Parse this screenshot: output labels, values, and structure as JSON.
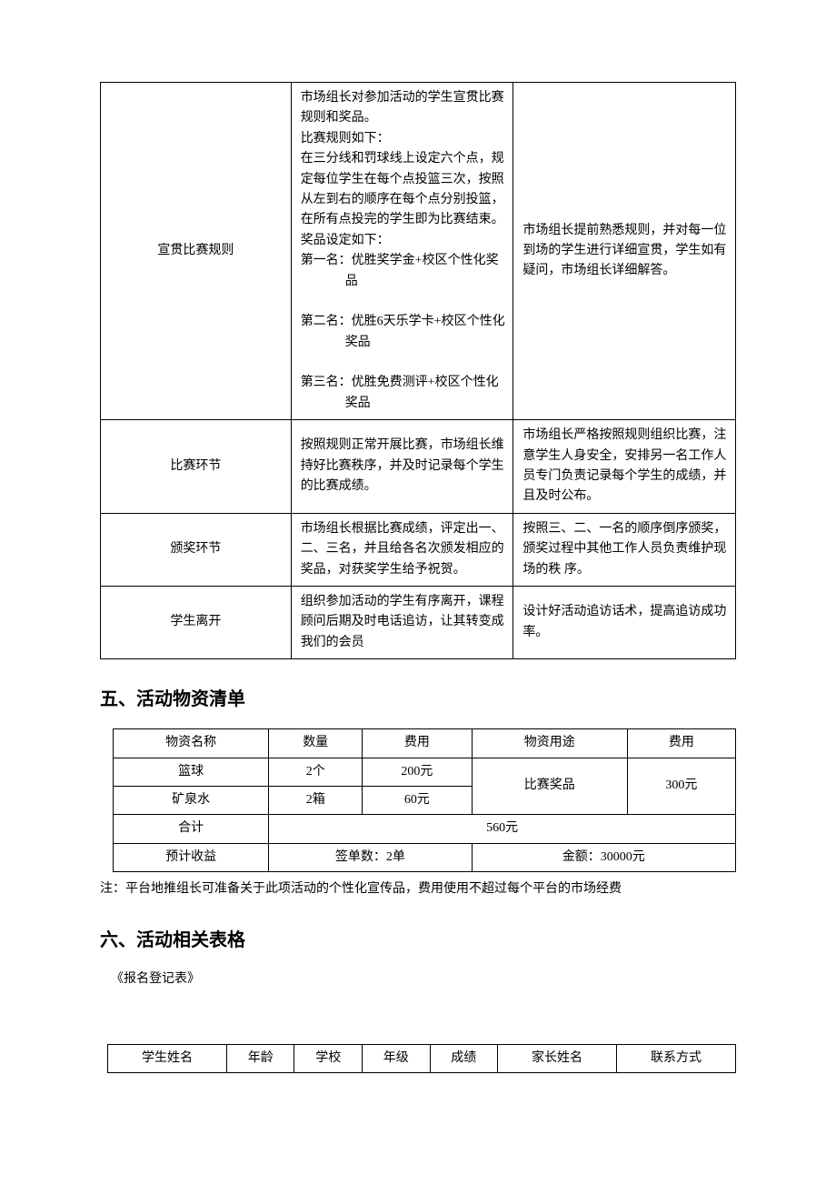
{
  "section4_rows": [
    {
      "name": "宣贯比赛规则",
      "mid": "市场组长对参加活动的学生宣贯比赛规则和奖品。\n比赛规则如下：\n在三分线和罚球线上设定六个点，规定每位学生在每个点投篮三次，按照从左到右的顺序在每个点分别投篮，在所有点投完的学生即为比赛结束。\n奖品设定如下：",
      "awards": [
        "第一名：优胜奖学金+校区个性化奖品",
        "第二名：优胜6天乐学卡+校区个性化奖品",
        "第三名：优胜免费测评+校区个性化奖品"
      ],
      "right": "市场组长提前熟悉规则，并对每一位到场的学生进行详细宣贯，学生如有疑问，市场组长详细解答。"
    },
    {
      "name": "比赛环节",
      "mid": "按照规则正常开展比赛，市场组长维持好比赛秩序，并及时记录每个学生的比赛成绩。",
      "right": "市场组长严格按照规则组织比赛，注意学生人身安全，安排另一名工作人员专门负责记录每个学生的成绩，并且及时公布。"
    },
    {
      "name": "颁奖环节",
      "mid": "市场组长根据比赛成绩，评定出一、二、三名，并且给各名次颁发相应的奖品，对获奖学生给予祝贺。",
      "right": "按照三、二、一名的顺序倒序颁奖，颁奖过程中其他工作人员负责维护现场的秩 序。"
    },
    {
      "name": "学生离开",
      "mid": "组织参加活动的学生有序离开，课程顾问后期及时电话追访，让其转变成我们的会员",
      "right": "设计好活动追访话术，提高追访成功率。"
    }
  ],
  "section5": {
    "title": "五、活动物资清单",
    "headers": {
      "c1": "物资名称",
      "c2": "数量",
      "c3": "费用",
      "c4": "物资用途",
      "c5": "费用"
    },
    "rows": [
      {
        "name": "篮球",
        "qty": "2个",
        "cost": "200元"
      },
      {
        "name": "矿泉水",
        "qty": "2箱",
        "cost": "60元"
      }
    ],
    "merged": {
      "use": "比赛奖品",
      "cost": "300元"
    },
    "total": {
      "label": "合计",
      "value": "560元"
    },
    "revenue": {
      "label": "预计收益",
      "orders": "签单数：2单",
      "amount": "金额：30000元"
    },
    "note": "注：平台地推组长可准备关于此项活动的个性化宣传品，费用使用不超过每个平台的市场经费"
  },
  "section6": {
    "title": "六、活动相关表格",
    "form_title": "《报名登记表》",
    "headers": [
      "学生姓名",
      "年龄",
      "学校",
      "年级",
      "成绩",
      "家长姓名",
      "联系方式"
    ]
  }
}
